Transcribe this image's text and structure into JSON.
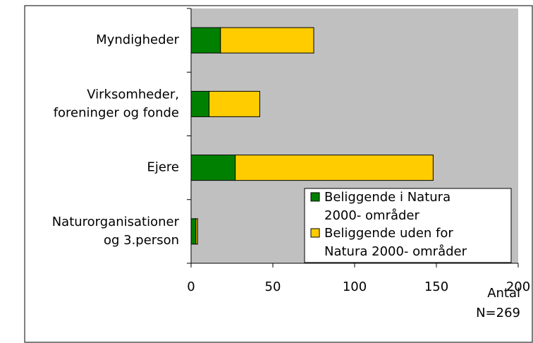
{
  "chart_data": {
    "type": "stacked_barh",
    "categories": [
      "Myndigheder",
      "Virksomheder,\nforeninger og fonde",
      "Ejere",
      "Naturorganisationer\nog 3.person"
    ],
    "series": [
      {
        "name": "Beliggende i Natura\n2000- områder",
        "color": "#008000",
        "values": [
          18,
          11,
          27,
          3
        ]
      },
      {
        "name": "Beliggende uden for\nNatura 2000- områder",
        "color": "#ffcc00",
        "values": [
          57,
          31,
          121,
          1
        ]
      }
    ],
    "xlim": [
      0,
      200
    ],
    "xticks": [
      0,
      50,
      100,
      150,
      200
    ],
    "xlabel": "Antal",
    "annotation": "N=269",
    "plot_background": "#c0c0c0",
    "legend": "lower right"
  }
}
